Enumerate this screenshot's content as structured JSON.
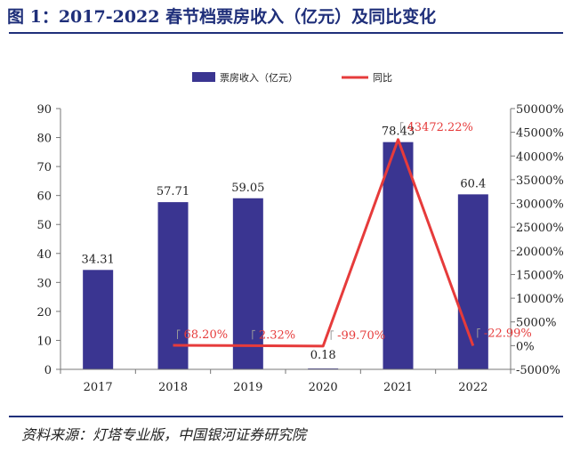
{
  "header": {
    "title": "图 1：2017-2022 春节档票房收入（亿元）及同比变化"
  },
  "footer": {
    "source": "资料来源：灯塔专业版，中国银河证券研究院"
  },
  "colors": {
    "bar": "#3a3591",
    "line": "#e63b3b",
    "title": "#1f2f7a"
  },
  "chart_data": {
    "type": "bar",
    "categories": [
      "2017",
      "2018",
      "2019",
      "2020",
      "2021",
      "2022"
    ],
    "series": [
      {
        "name": "票房收入（亿元）",
        "type": "bar",
        "axis": "left",
        "values": [
          34.31,
          57.71,
          59.05,
          0.18,
          78.43,
          60.4
        ],
        "labels": [
          "34.31",
          "57.71",
          "59.05",
          "0.18",
          "78.43",
          "60.4"
        ]
      },
      {
        "name": "同比",
        "type": "line",
        "axis": "right",
        "values": [
          null,
          68.2,
          2.32,
          -99.7,
          43472.22,
          -22.99
        ],
        "labels": [
          "",
          "68.20%",
          "2.32%",
          "-99.70%",
          "43472.22%",
          "-22.99%"
        ]
      }
    ],
    "y_left": {
      "min": 0,
      "max": 90,
      "step": 10,
      "ticks": [
        "0",
        "10",
        "20",
        "30",
        "40",
        "50",
        "60",
        "70",
        "80",
        "90"
      ]
    },
    "y_right": {
      "min": -5000,
      "max": 50000,
      "step": 5000,
      "ticks": [
        "-5000%",
        "0%",
        "5000%",
        "10000%",
        "15000%",
        "20000%",
        "25000%",
        "30000%",
        "35000%",
        "40000%",
        "45000%",
        "50000%"
      ]
    },
    "legend_position": "top-center",
    "grid": false
  }
}
